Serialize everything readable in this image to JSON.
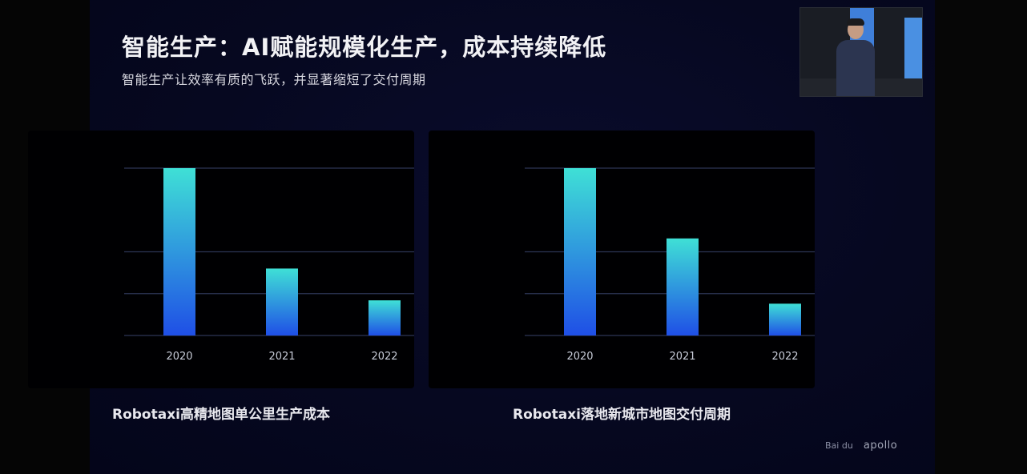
{
  "slide": {
    "title": "智能生产：AI赋能规模化生产，成本持续降低",
    "subtitle": "智能生产让效率有质的飞跃，并显著缩短了交付周期"
  },
  "logos": {
    "brand": "Bai du",
    "apollo": "apollo"
  },
  "colors": {
    "bar_top": "#3fe0d6",
    "bar_bottom": "#1f4fe6",
    "gridline": "#2c3555",
    "tick_label": "#c8ccd8"
  },
  "chart_data": [
    {
      "type": "bar",
      "caption": "Robotaxi高精地图单公里生产成本",
      "categories": [
        "2020",
        "2021",
        "2022"
      ],
      "values": [
        100,
        40,
        21
      ],
      "ylim": [
        0,
        100
      ],
      "grid": true
    },
    {
      "type": "bar",
      "caption": "Robotaxi落地新城市地图交付周期",
      "categories": [
        "2020",
        "2021",
        "2022"
      ],
      "values": [
        100,
        58,
        19
      ],
      "ylim": [
        0,
        100
      ],
      "grid": true
    }
  ]
}
